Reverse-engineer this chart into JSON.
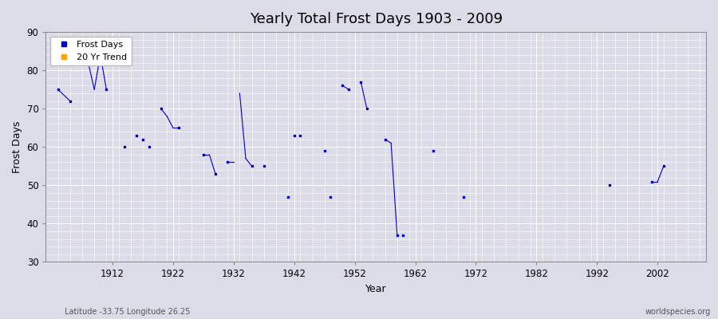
{
  "title": "Yearly Total Frost Days 1903 - 2009",
  "xlabel": "Year",
  "ylabel": "Frost Days",
  "xlim": [
    1901,
    2010
  ],
  "ylim": [
    30,
    90
  ],
  "yticks": [
    30,
    40,
    50,
    60,
    70,
    80,
    90
  ],
  "xticks": [
    1912,
    1922,
    1932,
    1942,
    1952,
    1962,
    1972,
    1982,
    1992,
    2002
  ],
  "background_color": "#dcdce8",
  "plot_bg_color": "#dcdce8",
  "line_color": "#0000cc",
  "grid_color": "#ffffff",
  "title_fontsize": 13,
  "segments": [
    [
      [
        1903,
        75
      ],
      [
        1905,
        72
      ]
    ],
    [
      [
        1908,
        82
      ],
      [
        1909,
        75
      ]
    ],
    [
      [
        1909,
        75
      ],
      [
        1910,
        84
      ]
    ],
    [
      [
        1910,
        84
      ],
      [
        1911,
        75
      ]
    ],
    [
      [
        1920,
        70
      ],
      [
        1921,
        68
      ]
    ],
    [
      [
        1921,
        68
      ],
      [
        1922,
        65
      ]
    ],
    [
      [
        1922,
        65
      ],
      [
        1923,
        65
      ]
    ],
    [
      [
        1927,
        58
      ],
      [
        1928,
        58
      ]
    ],
    [
      [
        1928,
        58
      ],
      [
        1929,
        53
      ]
    ],
    [
      [
        1931,
        56
      ],
      [
        1932,
        56
      ]
    ],
    [
      [
        1933,
        74
      ],
      [
        1934,
        57
      ]
    ],
    [
      [
        1934,
        57
      ],
      [
        1935,
        55
      ]
    ],
    [
      [
        1950,
        76
      ],
      [
        1951,
        75
      ]
    ],
    [
      [
        1953,
        77
      ],
      [
        1954,
        70
      ]
    ],
    [
      [
        1957,
        62
      ],
      [
        1958,
        61
      ]
    ],
    [
      [
        1958,
        61
      ],
      [
        1959,
        37
      ]
    ],
    [
      [
        2001,
        51
      ],
      [
        2002,
        51
      ]
    ],
    [
      [
        2002,
        51
      ],
      [
        2003,
        55
      ]
    ]
  ],
  "isolated_points": [
    [
      1903,
      75
    ],
    [
      1905,
      72
    ],
    [
      1908,
      82
    ],
    [
      1911,
      75
    ],
    [
      1914,
      60
    ],
    [
      1916,
      63
    ],
    [
      1917,
      62
    ],
    [
      1918,
      60
    ],
    [
      1920,
      70
    ],
    [
      1923,
      65
    ],
    [
      1927,
      58
    ],
    [
      1929,
      53
    ],
    [
      1931,
      56
    ],
    [
      1935,
      55
    ],
    [
      1937,
      55
    ],
    [
      1941,
      47
    ],
    [
      1942,
      63
    ],
    [
      1943,
      63
    ],
    [
      1947,
      59
    ],
    [
      1948,
      47
    ],
    [
      1950,
      76
    ],
    [
      1951,
      75
    ],
    [
      1953,
      77
    ],
    [
      1954,
      70
    ],
    [
      1957,
      62
    ],
    [
      1959,
      37
    ],
    [
      1960,
      37
    ],
    [
      1965,
      59
    ],
    [
      1970,
      47
    ],
    [
      1994,
      50
    ],
    [
      2001,
      51
    ],
    [
      2003,
      55
    ]
  ],
  "legend_frost_color": "#0000cc",
  "legend_trend_color": "#ffa500",
  "subtitle": "Latitude -33.75 Longitude 26.25",
  "watermark": "worldspecies.org"
}
